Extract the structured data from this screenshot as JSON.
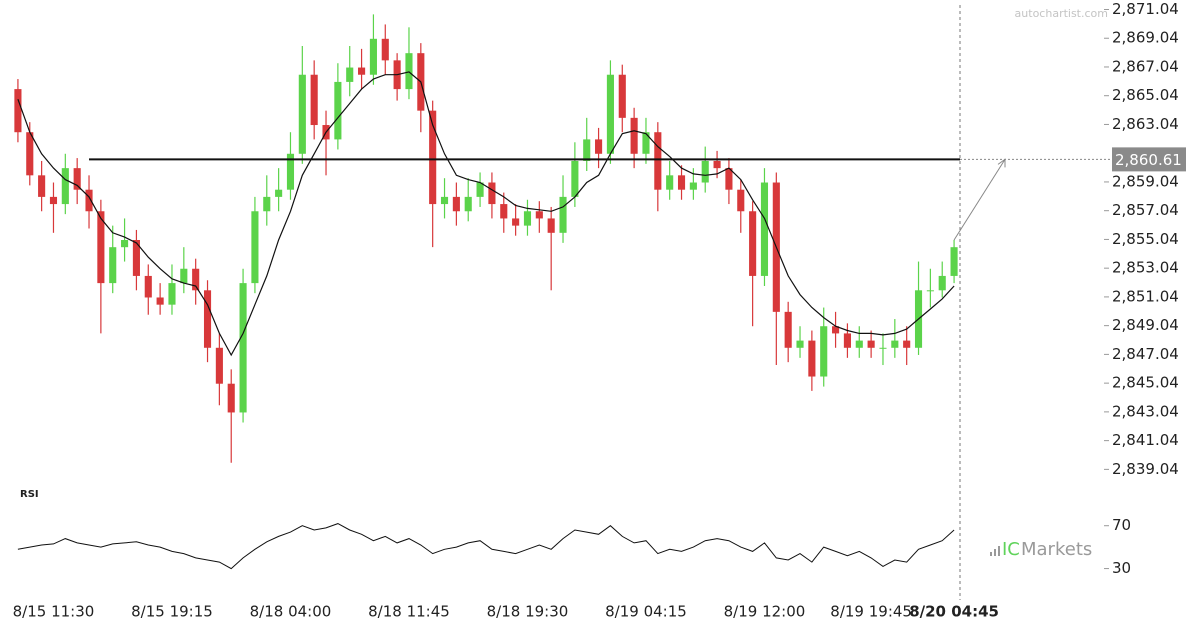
{
  "chart_data": [
    {
      "type": "candlestick",
      "watermark": "autochartist.com",
      "categories": [
        null,
        null,
        null,
        "8/15 11:30",
        null,
        null,
        null,
        null,
        null,
        null,
        null,
        null,
        null,
        "8/15 19:15",
        null,
        null,
        null,
        null,
        null,
        null,
        null,
        null,
        null,
        "8/18 04:00",
        null,
        null,
        null,
        null,
        null,
        null,
        null,
        null,
        null,
        "8/18 11:45",
        null,
        null,
        null,
        null,
        null,
        null,
        null,
        null,
        null,
        "8/18 19:30",
        null,
        null,
        null,
        null,
        null,
        null,
        null,
        null,
        null,
        "8/19 04:15",
        null,
        null,
        null,
        null,
        null,
        null,
        null,
        null,
        null,
        "8/19 12:00",
        null,
        null,
        null,
        null,
        null,
        null,
        null,
        null,
        "8/19 19:45",
        null,
        null,
        null,
        null,
        null,
        null,
        "8/20 04:45"
      ],
      "open": [
        2865.5,
        2862.5,
        2859.5,
        2858,
        2857.5,
        2860,
        2858.5,
        2857,
        2852,
        2854.5,
        2855,
        2852.5,
        2851,
        2850.5,
        2852,
        2853,
        2851.5,
        2847.5,
        2845,
        2843,
        2852,
        2857,
        2858,
        2858.5,
        2861,
        2866.5,
        2863,
        2862,
        2866,
        2867,
        2866.5,
        2869,
        2867.5,
        2865.5,
        2868,
        2864,
        2857.5,
        2858,
        2857,
        2858,
        2859,
        2857.5,
        2856.5,
        2856,
        2857,
        2856.5,
        2855.5,
        2858,
        2860.5,
        2862,
        2861,
        2866.5,
        2863.5,
        2861,
        2862.5,
        2858.5,
        2859.5,
        2858.5,
        2859,
        2860.5,
        2860,
        2858.5,
        2857,
        2852.5,
        2859,
        2850,
        2847.5,
        2848,
        2845.5,
        2849,
        2848.5,
        2847.5,
        2848,
        2847.5,
        2847.5,
        2848,
        2847.5,
        2851.5,
        2851.5,
        2852.5
      ],
      "high": [
        2866.2,
        2863.2,
        2860.5,
        2859,
        2861,
        2860.7,
        2859.5,
        2857.8,
        2856,
        2856.5,
        2855.7,
        2853.3,
        2852,
        2853.3,
        2854.5,
        2853.7,
        2852.2,
        2848.5,
        2846,
        2853,
        2858,
        2859.5,
        2860,
        2862.5,
        2868.5,
        2867.5,
        2864,
        2867.3,
        2868.5,
        2868.3,
        2870.7,
        2870,
        2868,
        2869.8,
        2868.7,
        2864.7,
        2859.3,
        2859,
        2859.3,
        2859.7,
        2859.7,
        2858.3,
        2857.5,
        2857.8,
        2857.7,
        2857.3,
        2859.5,
        2861.8,
        2863.5,
        2862.8,
        2867.5,
        2867.2,
        2864.2,
        2863.5,
        2863.2,
        2860.5,
        2860.2,
        2860,
        2861.5,
        2861.2,
        2860.7,
        2859.2,
        2857.7,
        2860,
        2859.7,
        2850.7,
        2849,
        2848.7,
        2850.3,
        2850,
        2849.2,
        2849,
        2848.7,
        2848.5,
        2849.5,
        2849,
        2853.5,
        2853,
        2853.5,
        2855
      ],
      "low": [
        2861.8,
        2858.8,
        2857,
        2855.5,
        2856.8,
        2857.5,
        2855.8,
        2848.5,
        2851.3,
        2853.5,
        2851.5,
        2849.8,
        2849.8,
        2849.8,
        2851.3,
        2850.5,
        2846.5,
        2843.5,
        2839.5,
        2842.3,
        2851.3,
        2856,
        2857,
        2857.8,
        2860.3,
        2862,
        2859.5,
        2861.3,
        2865,
        2865.5,
        2865.8,
        2866.5,
        2864.7,
        2864.8,
        2862.5,
        2854.5,
        2856.5,
        2856,
        2856.3,
        2857.3,
        2856.5,
        2855.5,
        2855.3,
        2855.3,
        2855.5,
        2851.5,
        2854.8,
        2857.3,
        2859.8,
        2860,
        2860.3,
        2862.5,
        2860,
        2860.3,
        2857,
        2857.8,
        2857.8,
        2857.8,
        2858.3,
        2859.3,
        2857.5,
        2855.5,
        2849,
        2851.8,
        2846.3,
        2846.5,
        2846.8,
        2844.5,
        2844.8,
        2847.5,
        2846.8,
        2846.8,
        2846.8,
        2846.3,
        2846.8,
        2846.3,
        2847,
        2850.3,
        2851,
        2852
      ],
      "close": [
        2862.5,
        2859.5,
        2858,
        2857.5,
        2860,
        2858.5,
        2857,
        2852,
        2854.5,
        2855,
        2852.5,
        2851,
        2850.5,
        2852,
        2853,
        2851.5,
        2847.5,
        2845,
        2843,
        2852,
        2857,
        2858,
        2858.5,
        2861,
        2866.5,
        2863,
        2862,
        2866,
        2867,
        2866.5,
        2869,
        2867.5,
        2865.5,
        2868,
        2864,
        2857.5,
        2858,
        2857,
        2858,
        2859,
        2857.5,
        2856.5,
        2856,
        2857,
        2856.5,
        2855.5,
        2858,
        2860.5,
        2862,
        2861,
        2866.5,
        2863.5,
        2861,
        2862.5,
        2858.5,
        2859.5,
        2858.5,
        2859,
        2860.5,
        2860,
        2858.5,
        2857,
        2852.5,
        2859,
        2850,
        2847.5,
        2848,
        2845.5,
        2849,
        2848.5,
        2847.5,
        2848,
        2847.5,
        2847.5,
        2848,
        2847.5,
        2851.5,
        2851.5,
        2852.5,
        2854.5
      ],
      "up_color": "#5bd34a",
      "down_color": "#d8383a",
      "ma": {
        "color": "#111111",
        "values": [
          2864.8,
          2862.5,
          2861,
          2860,
          2859.2,
          2858.8,
          2858,
          2856.5,
          2855.5,
          2855.2,
          2854.8,
          2853.8,
          2853,
          2852.3,
          2852,
          2851.8,
          2850.5,
          2848.5,
          2847,
          2848.5,
          2850.5,
          2852.5,
          2855,
          2857,
          2859.5,
          2861,
          2862.5,
          2863.5,
          2864.5,
          2865.5,
          2866.2,
          2866.5,
          2866.5,
          2866.7,
          2866,
          2863,
          2861,
          2859.5,
          2859.2,
          2859,
          2858.5,
          2858,
          2857.4,
          2857.2,
          2857.1,
          2857,
          2857.3,
          2858,
          2859,
          2859.5,
          2861,
          2862.4,
          2862.6,
          2862.4,
          2861.5,
          2860.8,
          2860,
          2859.6,
          2859.5,
          2859.6,
          2860,
          2859.2,
          2857.8,
          2856.5,
          2854.5,
          2852.5,
          2851.2,
          2850.3,
          2849.6,
          2849,
          2848.7,
          2848.5,
          2848.5,
          2848.4,
          2848.5,
          2848.8,
          2849.5,
          2850.2,
          2850.9,
          2851.8
        ]
      },
      "level": {
        "value": 2860.61,
        "label": "2,860.61"
      },
      "ylim": [
        2838.3,
        2871.7
      ],
      "yticks": [
        {
          "value": 2871.04,
          "label": "2,871.04"
        },
        {
          "value": 2869.04,
          "label": "2,869.04"
        },
        {
          "value": 2867.04,
          "label": "2,867.04"
        },
        {
          "value": 2865.04,
          "label": "2,865.04"
        },
        {
          "value": 2863.04,
          "label": "2,863.04"
        },
        {
          "value": 2859.04,
          "label": "2,859.04"
        },
        {
          "value": 2857.04,
          "label": "2,857.04"
        },
        {
          "value": 2855.04,
          "label": "2,855.04"
        },
        {
          "value": 2853.04,
          "label": "2,853.04"
        },
        {
          "value": 2851.04,
          "label": "2,851.04"
        },
        {
          "value": 2849.04,
          "label": "2,849.04"
        },
        {
          "value": 2847.04,
          "label": "2,847.04"
        },
        {
          "value": 2845.04,
          "label": "2,845.04"
        },
        {
          "value": 2843.04,
          "label": "2,843.04"
        },
        {
          "value": 2841.04,
          "label": "2,841.04"
        },
        {
          "value": 2839.04,
          "label": "2,839.04"
        }
      ]
    },
    {
      "type": "line",
      "title": "RSI",
      "brand_ic": "IC",
      "brand_markets": "Markets",
      "series": [
        {
          "name": "RSI",
          "color": "#111111",
          "values": [
            48,
            50,
            52,
            53,
            58,
            54,
            52,
            50,
            53,
            54,
            55,
            52,
            50,
            46,
            44,
            40,
            38,
            36,
            30,
            40,
            48,
            55,
            60,
            64,
            70,
            66,
            68,
            72,
            66,
            62,
            56,
            60,
            54,
            58,
            52,
            44,
            48,
            50,
            54,
            56,
            48,
            46,
            44,
            48,
            52,
            48,
            58,
            66,
            64,
            62,
            70,
            60,
            54,
            56,
            44,
            48,
            46,
            50,
            56,
            58,
            56,
            50,
            46,
            54,
            40,
            38,
            44,
            36,
            50,
            46,
            42,
            46,
            40,
            32,
            38,
            36,
            48,
            52,
            56,
            66
          ]
        }
      ],
      "ylim": [
        10,
        94
      ],
      "yticks": [
        70,
        30
      ]
    }
  ]
}
